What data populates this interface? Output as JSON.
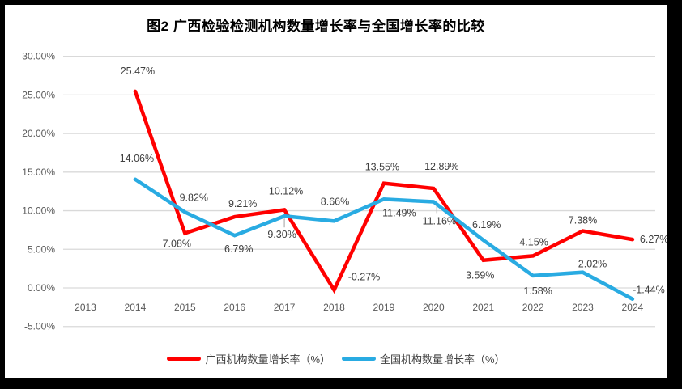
{
  "chart_data": {
    "type": "line",
    "title": "图2 广西检验检测机构数量增长率与全国增长率的比较",
    "categories": [
      "2013",
      "2014",
      "2015",
      "2016",
      "2017",
      "2018",
      "2019",
      "2020",
      "2021",
      "2022",
      "2023",
      "2024"
    ],
    "series": [
      {
        "name": "广西机构数量增长率（%）",
        "color": "#FF0000",
        "values": [
          null,
          25.47,
          7.08,
          9.21,
          10.12,
          -0.27,
          13.55,
          12.89,
          3.59,
          4.15,
          7.38,
          6.27
        ],
        "labels": [
          null,
          "25.47%",
          "7.08%",
          "9.21%",
          "10.12%",
          "-0.27%",
          "13.55%",
          "12.89%",
          "3.59%",
          "4.15%",
          "7.38%",
          "6.27%"
        ]
      },
      {
        "name": "全国机构数量增长率（%）",
        "color": "#29ABE2",
        "values": [
          null,
          14.06,
          9.82,
          6.79,
          9.3,
          8.66,
          11.49,
          11.16,
          6.19,
          1.58,
          2.02,
          -1.44
        ],
        "labels": [
          null,
          "14.06%",
          "9.82%",
          "6.79%",
          "9.30%",
          "8.66%",
          "11.49%",
          "11.16%",
          "6.19%",
          "1.58%",
          "2.02%",
          "-1.44%"
        ]
      }
    ],
    "ylim": [
      -5,
      30
    ],
    "yticks": [
      30,
      25,
      20,
      15,
      10,
      5,
      0,
      -5
    ],
    "ytick_labels": [
      "30.00%",
      "25.00%",
      "20.00%",
      "15.00%",
      "10.00%",
      "5.00%",
      "0.00%",
      "-5.00%"
    ],
    "grid": true,
    "legend_position": "bottom",
    "data_labels": true
  },
  "colors": {
    "guangxi_line": "#FF0000",
    "national_line": "#29ABE2",
    "grid": "#D9D9D9",
    "axis_text": "#595959",
    "data_label_text": "#404040",
    "leader_line": "#BFBFBF",
    "frame": "#000000"
  }
}
